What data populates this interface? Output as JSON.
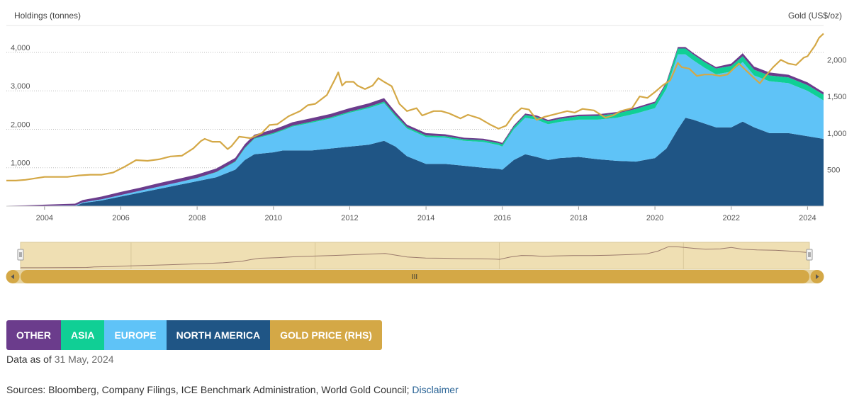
{
  "chart_data": {
    "type": "area",
    "y_left_label": "Holdings (tonnes)",
    "y_right_label": "Gold (US$/oz)",
    "y_left_ticks": [
      "1,000",
      "2,000",
      "3,000",
      "4,000"
    ],
    "y_left_tick_values": [
      1000,
      2000,
      3000,
      4000
    ],
    "y_right_ticks": [
      "500",
      "1,000",
      "1,500",
      "2,000"
    ],
    "y_right_tick_values": [
      500,
      1000,
      1500,
      2000
    ],
    "y_left_range": [
      0,
      4700
    ],
    "y_right_range": [
      0,
      2470
    ],
    "x_range": [
      2003.0,
      2024.42
    ],
    "x_ticks": [
      "2004",
      "2006",
      "2008",
      "2010",
      "2012",
      "2014",
      "2016",
      "2018",
      "2020",
      "2022",
      "2024"
    ],
    "x_tick_values": [
      2004,
      2006,
      2008,
      2010,
      2012,
      2014,
      2016,
      2018,
      2020,
      2022,
      2024
    ],
    "grid": true,
    "stacked": true,
    "x": [
      2003.0,
      2003.5,
      2004.0,
      2004.5,
      2004.8,
      2005.0,
      2005.5,
      2006.0,
      2006.5,
      2007.0,
      2007.5,
      2008.0,
      2008.5,
      2009.0,
      2009.25,
      2009.5,
      2010.0,
      2010.25,
      2010.5,
      2011.0,
      2011.5,
      2012.0,
      2012.5,
      2012.9,
      2013.2,
      2013.5,
      2014.0,
      2014.5,
      2015.0,
      2015.5,
      2015.9,
      2016.0,
      2016.3,
      2016.6,
      2016.9,
      2017.2,
      2017.5,
      2018.0,
      2018.5,
      2019.0,
      2019.5,
      2020.0,
      2020.3,
      2020.6,
      2020.8,
      2021.0,
      2021.3,
      2021.6,
      2022.0,
      2022.3,
      2022.6,
      2023.0,
      2023.5,
      2024.0,
      2024.42
    ],
    "series": [
      {
        "name": "NORTH AMERICA",
        "color": "#1f5585",
        "values": [
          0,
          0,
          0,
          0,
          0,
          80,
          150,
          250,
          350,
          450,
          550,
          650,
          750,
          950,
          1200,
          1350,
          1400,
          1450,
          1450,
          1450,
          1500,
          1550,
          1600,
          1700,
          1550,
          1300,
          1100,
          1100,
          1050,
          1000,
          970,
          950,
          1200,
          1350,
          1280,
          1200,
          1250,
          1280,
          1220,
          1180,
          1160,
          1250,
          1500,
          2000,
          2300,
          2250,
          2150,
          2050,
          2050,
          2200,
          2050,
          1900,
          1900,
          1820,
          1750
        ]
      },
      {
        "name": "EUROPE",
        "color": "#5fc3f7",
        "values": [
          0,
          0,
          10,
          15,
          15,
          20,
          30,
          40,
          50,
          60,
          70,
          80,
          130,
          200,
          300,
          400,
          480,
          520,
          620,
          720,
          780,
          880,
          950,
          980,
          780,
          720,
          700,
          680,
          650,
          670,
          620,
          600,
          800,
          950,
          970,
          930,
          940,
          970,
          1030,
          1120,
          1250,
          1300,
          1550,
          1950,
          1650,
          1550,
          1450,
          1380,
          1450,
          1550,
          1350,
          1350,
          1300,
          1180,
          1000
        ]
      },
      {
        "name": "ASIA",
        "color": "#10cf95",
        "values": [
          0,
          0,
          0,
          0,
          0,
          0,
          0,
          0,
          0,
          0,
          0,
          5,
          10,
          15,
          20,
          20,
          25,
          25,
          25,
          30,
          30,
          30,
          35,
          40,
          40,
          40,
          40,
          40,
          40,
          45,
          50,
          55,
          60,
          70,
          70,
          75,
          80,
          90,
          100,
          110,
          120,
          130,
          140,
          150,
          150,
          150,
          150,
          150,
          150,
          150,
          150,
          150,
          150,
          150,
          150
        ]
      },
      {
        "name": "OTHER",
        "color": "#6b3c8c",
        "values": [
          10,
          20,
          30,
          40,
          50,
          60,
          70,
          80,
          80,
          90,
          90,
          90,
          90,
          90,
          90,
          90,
          90,
          90,
          90,
          90,
          90,
          90,
          90,
          90,
          80,
          60,
          60,
          50,
          40,
          40,
          40,
          40,
          40,
          40,
          40,
          40,
          40,
          40,
          40,
          40,
          40,
          40,
          40,
          40,
          40,
          40,
          40,
          40,
          60,
          80,
          80,
          80,
          70,
          70,
          60
        ]
      },
      {
        "name": "GOLD PRICE (RHS)",
        "color": "#d4a846",
        "axis": "right",
        "x": [
          2003.0,
          2003.25,
          2003.5,
          2004.0,
          2004.3,
          2004.6,
          2004.9,
          2005.2,
          2005.5,
          2005.8,
          2006.1,
          2006.4,
          2006.7,
          2007.0,
          2007.3,
          2007.6,
          2007.9,
          2008.1,
          2008.2,
          2008.4,
          2008.6,
          2008.8,
          2008.9,
          2009.1,
          2009.4,
          2009.7,
          2009.9,
          2010.1,
          2010.4,
          2010.7,
          2010.9,
          2011.1,
          2011.4,
          2011.6,
          2011.7,
          2011.8,
          2011.9,
          2012.1,
          2012.2,
          2012.4,
          2012.6,
          2012.75,
          2012.9,
          2013.1,
          2013.3,
          2013.5,
          2013.75,
          2013.9,
          2014.2,
          2014.4,
          2014.6,
          2014.9,
          2015.1,
          2015.4,
          2015.7,
          2015.9,
          2016.1,
          2016.3,
          2016.5,
          2016.7,
          2016.9,
          2017.1,
          2017.4,
          2017.7,
          2017.9,
          2018.1,
          2018.4,
          2018.7,
          2018.9,
          2019.1,
          2019.4,
          2019.6,
          2019.8,
          2020.0,
          2020.2,
          2020.4,
          2020.6,
          2020.7,
          2020.9,
          2021.1,
          2021.3,
          2021.5,
          2021.7,
          2021.9,
          2022.1,
          2022.2,
          2022.4,
          2022.6,
          2022.75,
          2022.9,
          2023.1,
          2023.3,
          2023.5,
          2023.7,
          2023.9,
          2024.0,
          2024.2,
          2024.3,
          2024.42
        ],
        "values": [
          350,
          350,
          360,
          400,
          400,
          400,
          420,
          430,
          430,
          460,
          540,
          630,
          620,
          640,
          680,
          690,
          790,
          890,
          920,
          880,
          880,
          780,
          820,
          950,
          930,
          1000,
          1110,
          1120,
          1230,
          1300,
          1380,
          1400,
          1520,
          1720,
          1830,
          1650,
          1700,
          1700,
          1650,
          1600,
          1650,
          1750,
          1700,
          1640,
          1400,
          1300,
          1340,
          1240,
          1300,
          1300,
          1270,
          1200,
          1250,
          1200,
          1110,
          1060,
          1100,
          1250,
          1340,
          1320,
          1180,
          1220,
          1260,
          1300,
          1280,
          1330,
          1310,
          1210,
          1240,
          1300,
          1340,
          1500,
          1480,
          1560,
          1650,
          1720,
          1960,
          1900,
          1880,
          1780,
          1800,
          1800,
          1780,
          1800,
          1900,
          1950,
          1850,
          1750,
          1680,
          1780,
          1900,
          2000,
          1950,
          1930,
          2030,
          2050,
          2200,
          2300,
          2360
        ]
      }
    ]
  },
  "navigator": {
    "left_handle_icon": "grip-icon",
    "right_handle_icon": "grip-icon",
    "scroll_left_icon": "triangle-left-icon",
    "scroll_right_icon": "triangle-right-icon",
    "scroll_grip_label": "III",
    "track_color": "#efdfb3",
    "bar_color": "#d4a846"
  },
  "legend": [
    {
      "label": "OTHER",
      "color": "#6b3c8c"
    },
    {
      "label": "ASIA",
      "color": "#10cf95"
    },
    {
      "label": "EUROPE",
      "color": "#5fc3f7"
    },
    {
      "label": "NORTH AMERICA",
      "color": "#1f5585"
    },
    {
      "label": "GOLD PRICE (RHS)",
      "color": "#d4a846"
    }
  ],
  "footer": {
    "data_as_of_label": "Data as of",
    "data_as_of_date": "31 May, 2024",
    "sources_text": "Sources: Bloomberg, Company Filings, ICE Benchmark Administration, World Gold Council;",
    "disclaimer_link": "Disclaimer"
  }
}
